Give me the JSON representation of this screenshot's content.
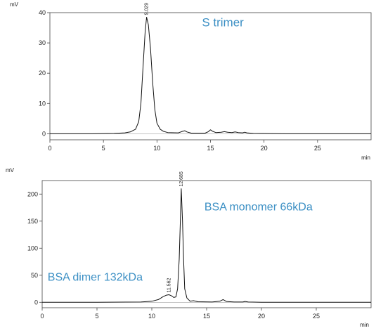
{
  "chart_data": [
    {
      "type": "line",
      "title": "",
      "yunit": "mV",
      "xunit": "min",
      "xlim": [
        0,
        30
      ],
      "ylim": [
        -2,
        40
      ],
      "xticks": [
        0,
        5,
        10,
        15,
        20,
        25
      ],
      "yticks": [
        0,
        10,
        20,
        30,
        40
      ],
      "series": [
        {
          "x": [
            0,
            4,
            6,
            7,
            7.5,
            8,
            8.3,
            8.5,
            8.7,
            8.9,
            9.03,
            9.2,
            9.4,
            9.6,
            9.8,
            10,
            10.3,
            10.6,
            11,
            12,
            12.4,
            12.6,
            12.8,
            13.2,
            14.5,
            14.8,
            15,
            15.2,
            15.5,
            16,
            16.3,
            16.6,
            17,
            17.3,
            17.6,
            18,
            18.2,
            18.4,
            19,
            22,
            30
          ],
          "y": [
            0,
            0,
            0.1,
            0.3,
            0.6,
            1.5,
            4,
            10,
            22,
            34,
            38.5,
            36,
            28,
            17,
            8,
            3.5,
            1.5,
            0.8,
            0.4,
            0.3,
            0.8,
            1,
            0.6,
            0.2,
            0.2,
            0.7,
            1.3,
            0.8,
            0.4,
            0.5,
            0.7,
            0.5,
            0.4,
            0.6,
            0.4,
            0.3,
            0.5,
            0.3,
            0.1,
            0,
            0
          ]
        }
      ],
      "peak_labels": [
        {
          "x": 9.03,
          "y": 38.5,
          "text": "9.029"
        }
      ],
      "annotations": [
        {
          "text": "S trimer",
          "x": 14.2,
          "y": 35.5
        }
      ]
    },
    {
      "type": "line",
      "title": "",
      "yunit": "mV",
      "xunit": "min",
      "xlim": [
        0,
        30
      ],
      "ylim": [
        -10,
        225
      ],
      "xticks": [
        0,
        5,
        10,
        15,
        20,
        25
      ],
      "yticks": [
        0,
        50,
        100,
        150,
        200
      ],
      "series": [
        {
          "x": [
            0,
            5,
            9,
            10,
            10.6,
            11.0,
            11.3,
            11.56,
            11.8,
            12.0,
            12.2,
            12.35,
            12.5,
            12.6,
            12.685,
            12.8,
            12.9,
            13.0,
            13.2,
            13.5,
            13.8,
            14.2,
            15.5,
            16.2,
            16.5,
            16.8,
            17.5,
            18.3,
            18.5,
            18.8,
            20,
            30
          ],
          "y": [
            0,
            0,
            0.5,
            2,
            5,
            10,
            13,
            14,
            12,
            9,
            10,
            25,
            80,
            150,
            210,
            150,
            80,
            25,
            8,
            2,
            3,
            1,
            0.5,
            2,
            5,
            1.5,
            0.5,
            0.5,
            1.5,
            0.5,
            0,
            0
          ]
        }
      ],
      "peak_labels": [
        {
          "x": 11.562,
          "y": 14,
          "text": "11.562"
        },
        {
          "x": 12.685,
          "y": 210,
          "text": "12.685"
        }
      ],
      "annotations": [
        {
          "text": "BSA monomer 66kDa",
          "x": 14.8,
          "y": 170
        },
        {
          "text": "BSA dimer 132kDa",
          "x": 0.5,
          "y": 40
        }
      ]
    }
  ]
}
